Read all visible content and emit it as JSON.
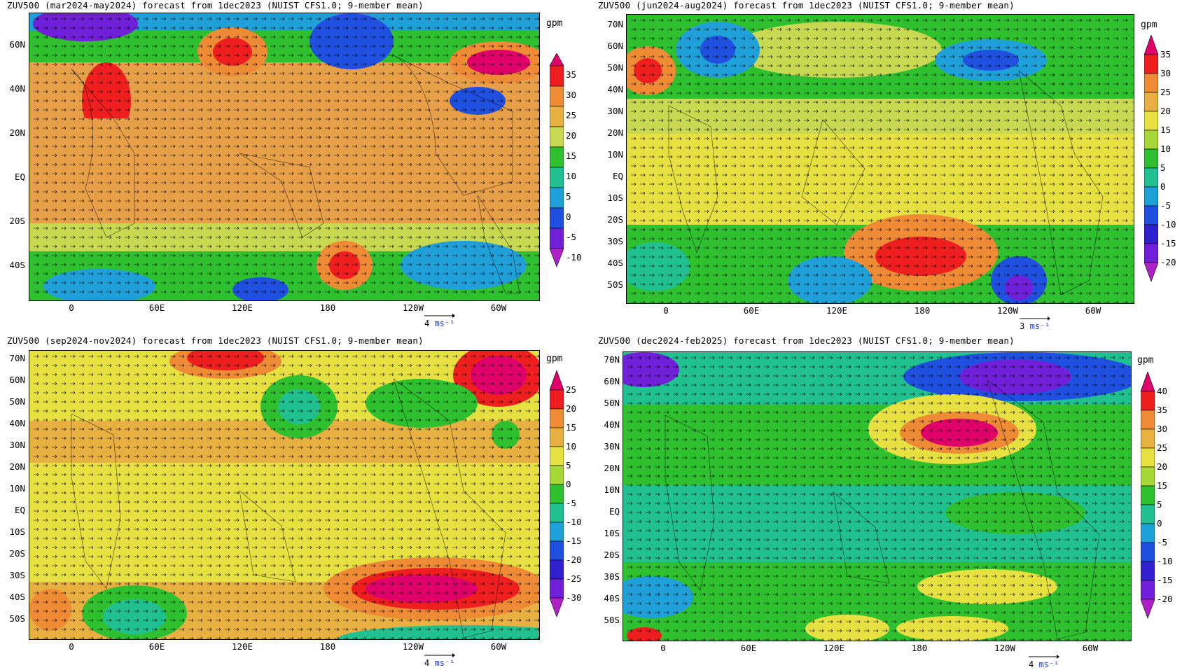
{
  "panels": [
    {
      "title": "ZUV500 (mar2024-may2024) forecast from 1dec2023 (NUIST CFS1.0; 9-member mean)",
      "unit": "gpm",
      "lat_labels": [
        "60N",
        "40N",
        "20N",
        "EQ",
        "20S",
        "40S"
      ],
      "lon_labels": [
        "0",
        "60E",
        "120E",
        "180",
        "120W",
        "60W"
      ],
      "colorbar_labels": [
        "35",
        "30",
        "25",
        "20",
        "15",
        "10",
        "5",
        "0",
        "-5",
        "-10"
      ],
      "colorbar_colors": [
        "#e0006a",
        "#ef1f1f",
        "#ef8a35",
        "#e8b040",
        "#c8d850",
        "#2fc02f",
        "#20c090",
        "#20a0d8",
        "#2050e0",
        "#7020d8",
        "#b020c8"
      ],
      "vector_ref_value": "4",
      "vector_ref_unit": "ms⁻¹"
    },
    {
      "title": "ZUV500 (jun2024-aug2024) forecast from 1dec2023 (NUIST CFS1.0; 9-member mean)",
      "unit": "gpm",
      "lat_labels": [
        "70N",
        "60N",
        "50N",
        "40N",
        "30N",
        "20N",
        "10N",
        "EQ",
        "10S",
        "20S",
        "30S",
        "40S",
        "50S"
      ],
      "lon_labels": [
        "0",
        "60E",
        "120E",
        "180",
        "120W",
        "60W"
      ],
      "colorbar_labels": [
        "35",
        "30",
        "25",
        "20",
        "15",
        "10",
        "5",
        "0",
        "-5",
        "-10",
        "-15",
        "-20"
      ],
      "colorbar_colors": [
        "#e0006a",
        "#ef1f1f",
        "#ef8a35",
        "#e8b040",
        "#e6e040",
        "#a8d838",
        "#2fc02f",
        "#20c090",
        "#20a0d8",
        "#2050e0",
        "#3020d0",
        "#7020d8",
        "#b020c8"
      ],
      "vector_ref_value": "3",
      "vector_ref_unit": "ms⁻¹"
    },
    {
      "title": "ZUV500 (sep2024-nov2024) forecast from 1dec2023 (NUIST CFS1.0; 9-member mean)",
      "unit": "gpm",
      "lat_labels": [
        "70N",
        "60N",
        "50N",
        "40N",
        "30N",
        "20N",
        "10N",
        "EQ",
        "10S",
        "20S",
        "30S",
        "40S",
        "50S"
      ],
      "lon_labels": [
        "0",
        "60E",
        "120E",
        "180",
        "120W",
        "60W"
      ],
      "colorbar_labels": [
        "25",
        "20",
        "15",
        "10",
        "5",
        "0",
        "-5",
        "-10",
        "-15",
        "-20",
        "-25",
        "-30"
      ],
      "colorbar_colors": [
        "#e0006a",
        "#ef1f1f",
        "#ef8a35",
        "#e8b040",
        "#e6e040",
        "#a8d838",
        "#2fc02f",
        "#20c090",
        "#20a0d8",
        "#2050e0",
        "#3020d0",
        "#7020d8",
        "#b020c8"
      ],
      "vector_ref_value": "4",
      "vector_ref_unit": "ms⁻¹"
    },
    {
      "title": "ZUV500 (dec2024-feb2025) forecast from 1dec2023 (NUIST CFS1.0; 9-member mean)",
      "unit": "gpm",
      "lat_labels": [
        "70N",
        "60N",
        "50N",
        "40N",
        "30N",
        "20N",
        "10N",
        "EQ",
        "10S",
        "20S",
        "30S",
        "40S",
        "50S"
      ],
      "lon_labels": [
        "0",
        "60E",
        "120E",
        "180",
        "120W",
        "60W"
      ],
      "colorbar_labels": [
        "40",
        "35",
        "30",
        "25",
        "20",
        "15",
        "5",
        "0",
        "-5",
        "-10",
        "-15",
        "-20"
      ],
      "colorbar_colors": [
        "#e0006a",
        "#ef1f1f",
        "#ef8a35",
        "#e8b040",
        "#e6e040",
        "#a8d838",
        "#2fc02f",
        "#20c090",
        "#20a0d8",
        "#2050e0",
        "#3020d0",
        "#7020d8",
        "#b020c8"
      ],
      "vector_ref_value": "4",
      "vector_ref_unit": "ms⁻¹"
    }
  ]
}
